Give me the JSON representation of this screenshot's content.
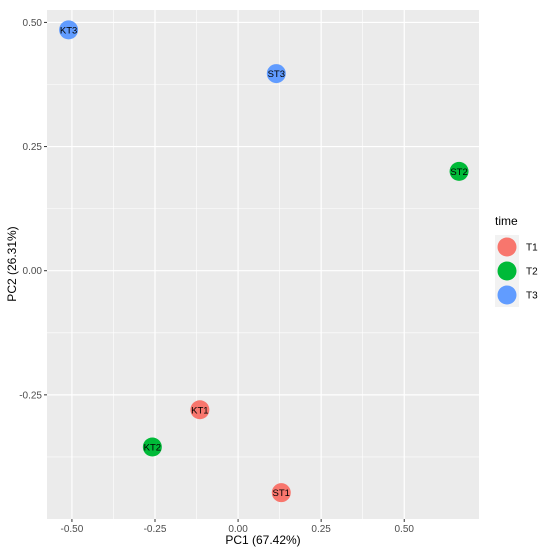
{
  "chart_data": {
    "type": "scatter",
    "xlabel": "PC1 (67.42%)",
    "ylabel": "PC2 (26.31%)",
    "xlim": [
      -0.575,
      0.725
    ],
    "ylim": [
      -0.5,
      0.525
    ],
    "x_ticks": [
      -0.5,
      -0.25,
      0.0,
      0.25,
      0.5
    ],
    "x_tick_labels": [
      "-0.50",
      "-0.25",
      "0.00",
      "0.25",
      "0.50"
    ],
    "y_ticks": [
      -0.25,
      0.0,
      0.25,
      0.5
    ],
    "y_tick_labels": [
      "-0.25",
      "0.00",
      "0.25",
      "0.50"
    ],
    "grid": true,
    "legend": {
      "title": "time",
      "placement": "right",
      "entries": [
        {
          "label": "T1",
          "color": "#F8766D"
        },
        {
          "label": "T2",
          "color": "#00BA38"
        },
        {
          "label": "T3",
          "color": "#619CFF"
        }
      ]
    },
    "points": [
      {
        "label": "KT3",
        "x": -0.51,
        "y": 0.485,
        "group": "T3"
      },
      {
        "label": "ST3",
        "x": 0.115,
        "y": 0.397,
        "group": "T3"
      },
      {
        "label": "ST2",
        "x": 0.665,
        "y": 0.2,
        "group": "T2"
      },
      {
        "label": "KT1",
        "x": -0.115,
        "y": -0.28,
        "group": "T1"
      },
      {
        "label": "KT2",
        "x": -0.258,
        "y": -0.355,
        "group": "T2"
      },
      {
        "label": "ST1",
        "x": 0.13,
        "y": -0.447,
        "group": "T1"
      }
    ]
  }
}
